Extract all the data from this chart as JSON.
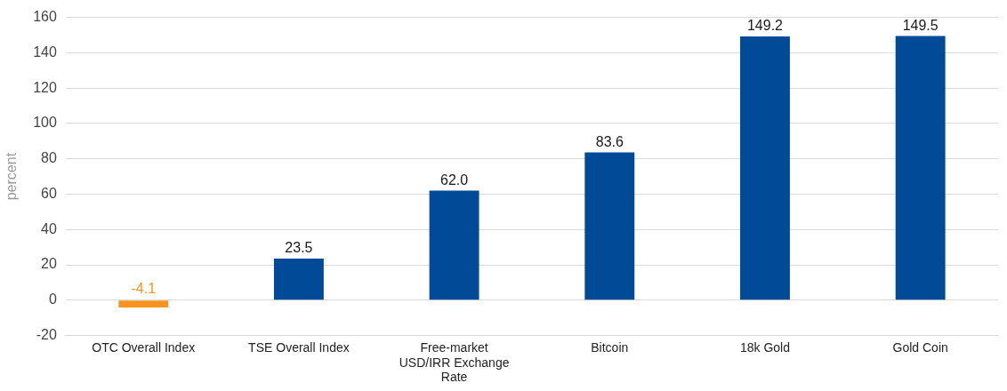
{
  "chart_data": {
    "type": "bar",
    "ylabel": "percent",
    "categories": [
      "OTC Overall Index",
      "TSE Overall Index",
      "Free-market USD/IRR Exchange Rate",
      "Bitcoin",
      "18k Gold",
      "Gold Coin"
    ],
    "values": [
      -4.1,
      23.5,
      62.0,
      83.6,
      149.2,
      149.5
    ],
    "colors": [
      "#f7941d",
      "#004a98",
      "#004a98",
      "#004a98",
      "#004a98",
      "#004a98"
    ],
    "value_labels": [
      "-4.1",
      "23.5",
      "62.0",
      "83.6",
      "149.2",
      "149.5"
    ],
    "ylim": [
      -20,
      160
    ],
    "yticks": [
      -20,
      0,
      20,
      40,
      60,
      80,
      100,
      120,
      140,
      160
    ],
    "grid": "y",
    "legend": false
  }
}
